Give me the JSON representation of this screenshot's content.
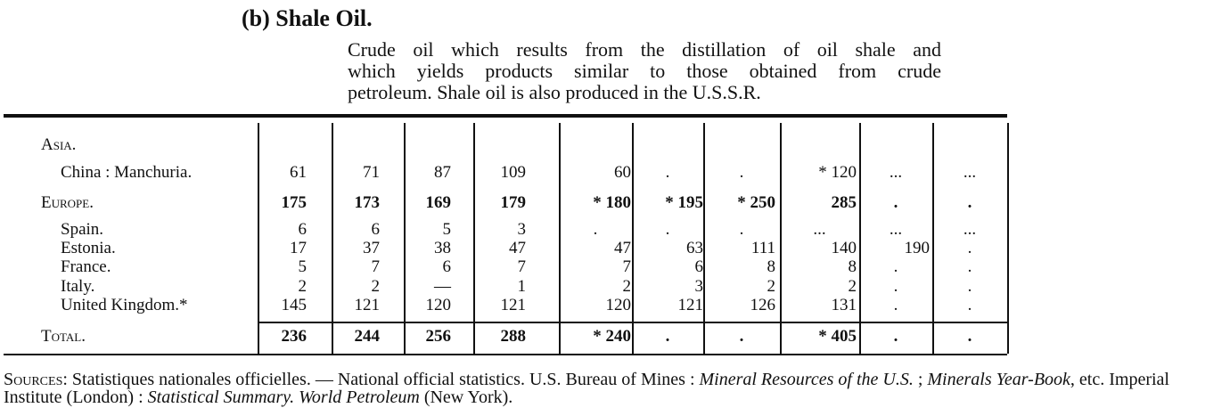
{
  "heading": "(b) Shale Oil.",
  "intro_lines": [
    "Crude oil which results from the distillation of oil shale and",
    "which yields products similar to those obtained from crude",
    "petroleum. Shale oil is also produced in the U.S.S.R."
  ],
  "rows": [
    {
      "label": "Asia.",
      "type": "region",
      "values": []
    },
    {
      "label": "China : Manchuria.",
      "type": "country",
      "values": [
        "61",
        "71",
        "87",
        "109",
        "60",
        ".",
        ".",
        "* 120",
        "...",
        "..."
      ]
    },
    {
      "label": "Europe.",
      "type": "region-bold",
      "values": [
        "175",
        "173",
        "169",
        "179",
        "* 180",
        "* 195",
        "* 250",
        "285",
        ".",
        "."
      ]
    },
    {
      "label": "Spain.",
      "type": "country",
      "values": [
        "6",
        "6",
        "5",
        "3",
        ".",
        ".",
        ".",
        "...",
        "...",
        "..."
      ]
    },
    {
      "label": "Estonia.",
      "type": "country",
      "values": [
        "17",
        "37",
        "38",
        "47",
        "47",
        "63",
        "111",
        "140",
        "190",
        "."
      ]
    },
    {
      "label": "France.",
      "type": "country",
      "values": [
        "5",
        "7",
        "6",
        "7",
        "7",
        "6",
        "8",
        "8",
        ".",
        "."
      ]
    },
    {
      "label": "Italy.",
      "type": "country",
      "values": [
        "2",
        "2",
        "—",
        "1",
        "2",
        "3",
        "2",
        "2",
        ".",
        "."
      ]
    },
    {
      "label": "United Kingdom.*",
      "type": "country",
      "values": [
        "145",
        "121",
        "120",
        "121",
        "120",
        "121",
        "126",
        "131",
        ".",
        "."
      ]
    },
    {
      "label": "Total.",
      "type": "total",
      "values": [
        "236",
        "244",
        "256",
        "288",
        "* 240",
        ".",
        ".",
        "* 405",
        ".",
        "."
      ]
    }
  ],
  "sources": {
    "label": "Sources",
    "text1": ": Statistiques nationales officielles. — National official statistics. U.S. Bureau of Mines : ",
    "italic1": "Mineral Resources of the U.S.",
    "text2": " ; ",
    "italic2": "Minerals Year-Book",
    "text3": ", etc. Imperial Institute (London) : ",
    "italic3": "Statistical Summary. World Petroleum",
    "text4": " (New York)."
  }
}
